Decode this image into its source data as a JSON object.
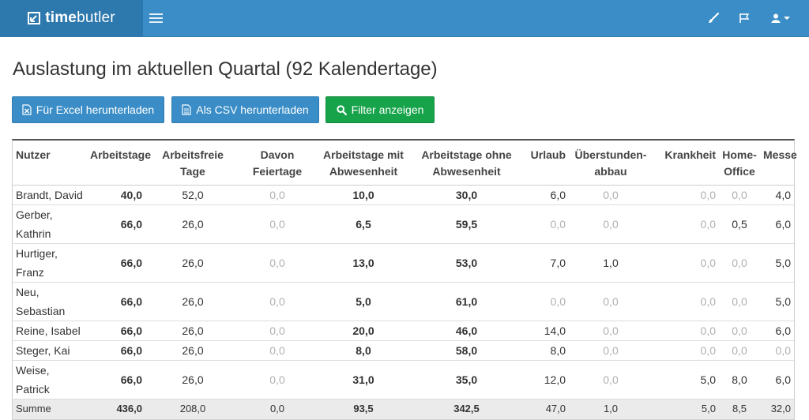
{
  "brand": {
    "bold": "time",
    "regular": "butler"
  },
  "title": "Auslastung im aktuellen Quartal (92 Kalendertage)",
  "buttons": {
    "excel": "Für Excel herunterladen",
    "csv": "Als CSV herunterladen",
    "filter": "Filter anzeigen"
  },
  "colors": {
    "navbar": "#3a8dc6",
    "brand_bg": "#2d79ae",
    "btn_blue": "#3a8dc6",
    "btn_green": "#17a34a",
    "muted": "#b0b0b0"
  },
  "table": {
    "headers": [
      [
        "Nutzer"
      ],
      [
        "Arbeitstage"
      ],
      [
        "Arbeitsfreie",
        "Tage"
      ],
      [
        "Davon",
        "Feiertage"
      ],
      [
        "Arbeitstage mit",
        "Abwesenheit"
      ],
      [
        "Arbeitstage ohne",
        "Abwesenheit"
      ],
      [
        "Urlaub"
      ],
      [
        "Überstunden-",
        "abbau"
      ],
      [
        "Krankheit"
      ],
      [
        "Home-",
        "Office"
      ],
      [
        "Messe"
      ]
    ],
    "rows": [
      [
        "Brandt, David",
        "40,0",
        "52,0",
        "0,0",
        "10,0",
        "30,0",
        "6,0",
        "0,0",
        "0,0",
        "0,0",
        "4,0"
      ],
      [
        "Gerber, Kathrin",
        "66,0",
        "26,0",
        "0,0",
        "6,5",
        "59,5",
        "0,0",
        "0,0",
        "0,0",
        "0,5",
        "6,0"
      ],
      [
        "Hurtiger, Franz",
        "66,0",
        "26,0",
        "0,0",
        "13,0",
        "53,0",
        "7,0",
        "1,0",
        "0,0",
        "0,0",
        "5,0"
      ],
      [
        "Neu, Sebastian",
        "66,0",
        "26,0",
        "0,0",
        "5,0",
        "61,0",
        "0,0",
        "0,0",
        "0,0",
        "0,0",
        "5,0"
      ],
      [
        "Reine, Isabel",
        "66,0",
        "26,0",
        "0,0",
        "20,0",
        "46,0",
        "14,0",
        "0,0",
        "0,0",
        "0,0",
        "6,0"
      ],
      [
        "Steger, Kai",
        "66,0",
        "26,0",
        "0,0",
        "8,0",
        "58,0",
        "8,0",
        "0,0",
        "0,0",
        "0,0",
        "0,0"
      ],
      [
        "Weise, Patrick",
        "66,0",
        "26,0",
        "0,0",
        "31,0",
        "35,0",
        "12,0",
        "0,0",
        "5,0",
        "8,0",
        "6,0"
      ]
    ],
    "sum": [
      "Summe",
      "436,0",
      "208,0",
      "0,0",
      "93,5",
      "342,5",
      "47,0",
      "1,0",
      "5,0",
      "8,5",
      "32,0"
    ]
  }
}
